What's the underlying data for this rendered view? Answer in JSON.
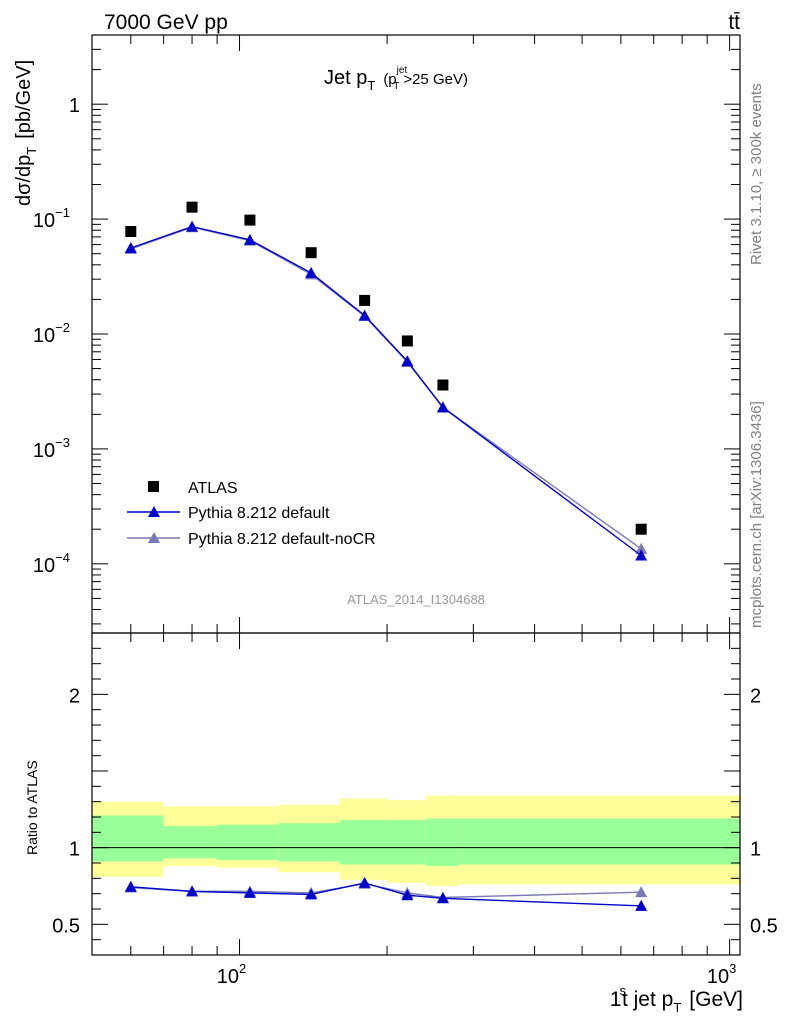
{
  "header": {
    "energy_label": "7000 GeV pp",
    "process_label": "tt̄",
    "rivet_label": "Rivet 3.1.10, ≥ 300k events",
    "mcplots_label": "mcplots.cern.ch [arXiv:1306.3436]",
    "analysis_label": "ATLAS_2014_I1304688"
  },
  "chart_data": {
    "type": "scatter",
    "title": "Jet pT (pT^jet>25 GeV)",
    "title_main": "Jet p",
    "title_sub": "T",
    "title_paren_open": "(p",
    "title_paren_sup": "jet",
    "title_paren_sub": "T",
    "title_paren_rest": ">25 GeV)",
    "xlabel": "1st jet pT [GeV]",
    "xlabel_main": "1",
    "xlabel_sup": "s",
    "xlabel_rest": "t jet p",
    "xlabel_sub": "T",
    "xlabel_unit": "[GeV]",
    "ylabel": "dσ/dpT [pb/GeV]",
    "ylabel_main": "dσ/dp",
    "ylabel_sub": "T",
    "ylabel_unit": "[pb/GeV]",
    "ratio_ylabel": "Ratio to ATLAS",
    "xscale": "log",
    "xlim": [
      50,
      1050
    ],
    "ylim": [
      2.5e-05,
      4
    ],
    "ratio_ylim": [
      0.3,
      2.4
    ],
    "x_tick_labels": [
      {
        "value": 100,
        "base": "10",
        "exp": "2"
      },
      {
        "value": 1000,
        "base": "10",
        "exp": "3"
      }
    ],
    "y_tick_labels": [
      {
        "value": 1,
        "base": "1",
        "exp": ""
      },
      {
        "value": 0.1,
        "base": "10",
        "exp": "−1"
      },
      {
        "value": 0.01,
        "base": "10",
        "exp": "−2"
      },
      {
        "value": 0.001,
        "base": "10",
        "exp": "−3"
      },
      {
        "value": 0.0001,
        "base": "10",
        "exp": "−4"
      }
    ],
    "ratio_tick_labels": [
      {
        "value": 2,
        "label": "2"
      },
      {
        "value": 1,
        "label": "1"
      },
      {
        "value": 0.5,
        "label": "0.5"
      }
    ],
    "bins": [
      {
        "low": 50,
        "high": 70,
        "x": 60
      },
      {
        "low": 70,
        "high": 90,
        "x": 80
      },
      {
        "low": 90,
        "high": 120,
        "x": 105
      },
      {
        "low": 120,
        "high": 160,
        "x": 140
      },
      {
        "low": 160,
        "high": 200,
        "x": 180
      },
      {
        "low": 200,
        "high": 240,
        "x": 220
      },
      {
        "low": 240,
        "high": 280,
        "x": 260
      },
      {
        "low": 280,
        "high": 1050,
        "x": 660
      }
    ],
    "series": [
      {
        "name": "ATLAS",
        "marker": "square",
        "color": "#000000",
        "values": [
          0.078,
          0.127,
          0.098,
          0.051,
          0.0196,
          0.0087,
          0.0036,
          0.0002
        ]
      },
      {
        "name": "Pythia 8.212 default",
        "marker": "triangle",
        "color": "#0000cc",
        "values": [
          0.056,
          0.086,
          0.066,
          0.034,
          0.0145,
          0.0058,
          0.0023,
          0.000118
        ]
      },
      {
        "name": "Pythia 8.212 default-noCR",
        "marker": "triangle",
        "color": "#7a7ab8",
        "values": [
          0.055,
          0.085,
          0.065,
          0.033,
          0.0143,
          0.0057,
          0.0023,
          0.000135
        ]
      }
    ],
    "ratio_series": [
      {
        "name": "Pythia 8.212 default",
        "color": "#0000cc",
        "values": [
          0.745,
          0.715,
          0.705,
          0.695,
          0.77,
          0.69,
          0.67,
          0.62
        ],
        "errors": [
          0.01,
          0.01,
          0.01,
          0.01,
          0.01,
          0.015,
          0.02,
          0.03
        ]
      },
      {
        "name": "Pythia 8.212 default-noCR",
        "color": "#7a7ab8",
        "values": [
          0.74,
          0.715,
          0.715,
          0.705,
          0.765,
          0.705,
          0.675,
          0.71
        ],
        "errors": [
          0.01,
          0.01,
          0.01,
          0.01,
          0.01,
          0.02,
          0.03,
          0.03
        ]
      }
    ],
    "ratio_bands": {
      "outer_color": "#ffff99",
      "inner_color": "#99ff99",
      "outer": [
        [
          0.81,
          1.3
        ],
        [
          0.88,
          1.27
        ],
        [
          0.87,
          1.27
        ],
        [
          0.84,
          1.28
        ],
        [
          0.79,
          1.32
        ],
        [
          0.77,
          1.31
        ],
        [
          0.75,
          1.34
        ],
        [
          0.76,
          1.34
        ]
      ],
      "inner": [
        [
          0.91,
          1.21
        ],
        [
          0.93,
          1.14
        ],
        [
          0.92,
          1.15
        ],
        [
          0.91,
          1.16
        ],
        [
          0.89,
          1.18
        ],
        [
          0.89,
          1.18
        ],
        [
          0.88,
          1.19
        ],
        [
          0.89,
          1.19
        ]
      ]
    }
  }
}
